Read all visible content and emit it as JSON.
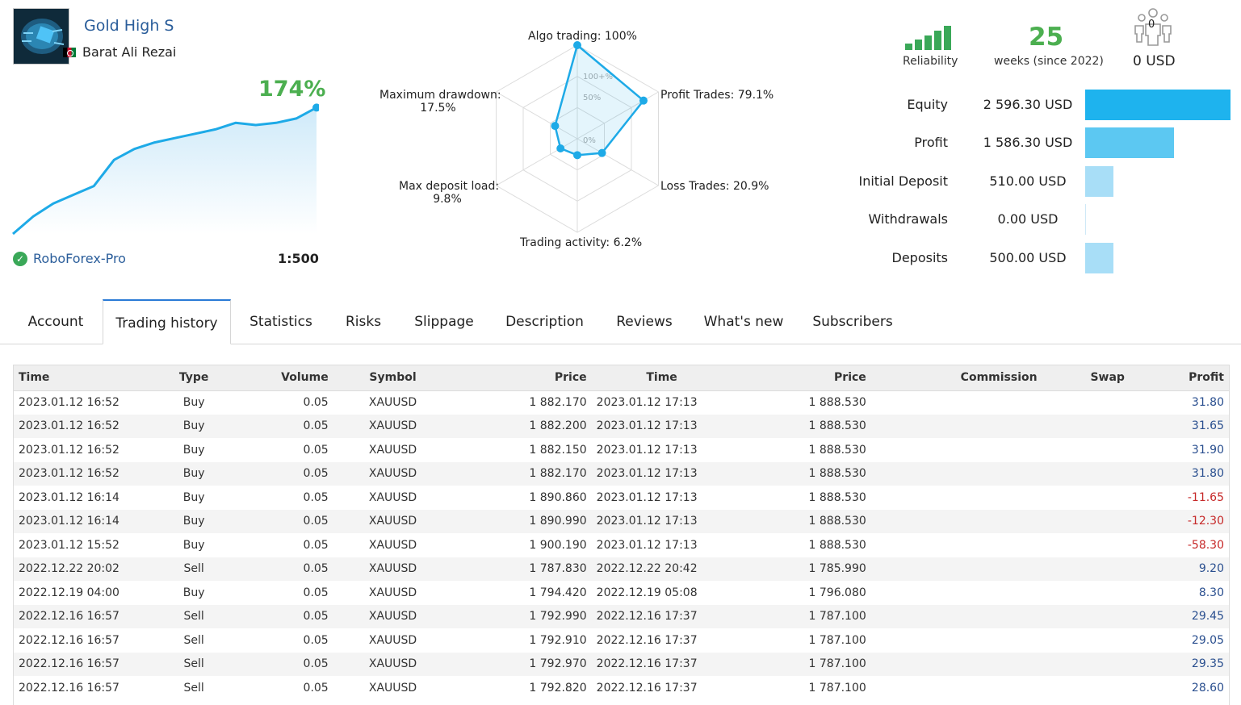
{
  "profile": {
    "title": "Gold High S",
    "author": "Barat Ali Rezai",
    "growth": "174%",
    "broker": "RoboForex-Pro",
    "leverage": "1:500"
  },
  "growth_series": [
    0,
    8,
    14,
    18,
    22,
    34,
    39,
    42,
    44,
    46,
    48,
    51,
    50,
    51,
    53,
    58
  ],
  "radar": {
    "scale_labels": [
      "100+%",
      "50%",
      "0%"
    ],
    "axes": [
      {
        "label": "Algo trading: 100%",
        "value": 100
      },
      {
        "label": "Profit Trades: 79.1%",
        "value": 79.1
      },
      {
        "label": "Loss Trades: 20.9%",
        "value": 20.9
      },
      {
        "label": "Trading activity: 6.2%",
        "value": 6.2
      },
      {
        "label": "Max deposit load:\n9.8%",
        "value": 9.8
      },
      {
        "label": "Maximum drawdown:\n17.5%",
        "value": 17.5
      }
    ],
    "labels": {
      "algo": "Algo trading: 100%",
      "profit_trades": "Profit Trades: 79.1%",
      "loss_trades": "Loss Trades: 20.9%",
      "activity": "Trading activity: 6.2%",
      "deposit_load_1": "Max deposit load:",
      "deposit_load_2": "9.8%",
      "drawdown_1": "Maximum drawdown:",
      "drawdown_2": "17.5%"
    }
  },
  "stats": {
    "reliability_label": "Reliability",
    "weeks": "25",
    "weeks_label": "weeks (since 2022)",
    "subscribers": "0",
    "subscribers_usd": "0 USD"
  },
  "finance": [
    {
      "label": "Equity",
      "value": "2 596.30 USD",
      "amount": 2596.3,
      "color": "#1eb3ee"
    },
    {
      "label": "Profit",
      "value": "1 586.30 USD",
      "amount": 1586.3,
      "color": "#5cc8f2"
    },
    {
      "label": "Initial Deposit",
      "value": "510.00 USD",
      "amount": 510.0,
      "color": "#a8def7"
    },
    {
      "label": "Withdrawals",
      "value": "0.00 USD",
      "amount": 0,
      "color": "#a8def7"
    },
    {
      "label": "Deposits",
      "value": "500.00 USD",
      "amount": 500.0,
      "color": "#a8def7"
    }
  ],
  "tabs": [
    "Account",
    "Trading history",
    "Statistics",
    "Risks",
    "Slippage",
    "Description",
    "Reviews",
    "What's new",
    "Subscribers"
  ],
  "table": {
    "headers": [
      "Time",
      "Type",
      "Volume",
      "Symbol",
      "Price",
      "Time",
      "Price",
      "Commission",
      "Swap",
      "Profit"
    ],
    "rows": [
      [
        "2023.01.12 16:52",
        "Buy",
        "0.05",
        "XAUUSD",
        "1 882.170",
        "2023.01.12 17:13",
        "1 888.530",
        "",
        "",
        "31.80"
      ],
      [
        "2023.01.12 16:52",
        "Buy",
        "0.05",
        "XAUUSD",
        "1 882.200",
        "2023.01.12 17:13",
        "1 888.530",
        "",
        "",
        "31.65"
      ],
      [
        "2023.01.12 16:52",
        "Buy",
        "0.05",
        "XAUUSD",
        "1 882.150",
        "2023.01.12 17:13",
        "1 888.530",
        "",
        "",
        "31.90"
      ],
      [
        "2023.01.12 16:52",
        "Buy",
        "0.05",
        "XAUUSD",
        "1 882.170",
        "2023.01.12 17:13",
        "1 888.530",
        "",
        "",
        "31.80"
      ],
      [
        "2023.01.12 16:14",
        "Buy",
        "0.05",
        "XAUUSD",
        "1 890.860",
        "2023.01.12 17:13",
        "1 888.530",
        "",
        "",
        "-11.65"
      ],
      [
        "2023.01.12 16:14",
        "Buy",
        "0.05",
        "XAUUSD",
        "1 890.990",
        "2023.01.12 17:13",
        "1 888.530",
        "",
        "",
        "-12.30"
      ],
      [
        "2023.01.12 15:52",
        "Buy",
        "0.05",
        "XAUUSD",
        "1 900.190",
        "2023.01.12 17:13",
        "1 888.530",
        "",
        "",
        "-58.30"
      ],
      [
        "2022.12.22 20:02",
        "Sell",
        "0.05",
        "XAUUSD",
        "1 787.830",
        "2022.12.22 20:42",
        "1 785.990",
        "",
        "",
        "9.20"
      ],
      [
        "2022.12.19 04:00",
        "Buy",
        "0.05",
        "XAUUSD",
        "1 794.420",
        "2022.12.19 05:08",
        "1 796.080",
        "",
        "",
        "8.30"
      ],
      [
        "2022.12.16 16:57",
        "Sell",
        "0.05",
        "XAUUSD",
        "1 792.990",
        "2022.12.16 17:37",
        "1 787.100",
        "",
        "",
        "29.45"
      ],
      [
        "2022.12.16 16:57",
        "Sell",
        "0.05",
        "XAUUSD",
        "1 792.910",
        "2022.12.16 17:37",
        "1 787.100",
        "",
        "",
        "29.05"
      ],
      [
        "2022.12.16 16:57",
        "Sell",
        "0.05",
        "XAUUSD",
        "1 792.970",
        "2022.12.16 17:37",
        "1 787.100",
        "",
        "",
        "29.35"
      ],
      [
        "2022.12.16 16:57",
        "Sell",
        "0.05",
        "XAUUSD",
        "1 792.820",
        "2022.12.16 17:37",
        "1 787.100",
        "",
        "",
        "28.60"
      ]
    ]
  }
}
